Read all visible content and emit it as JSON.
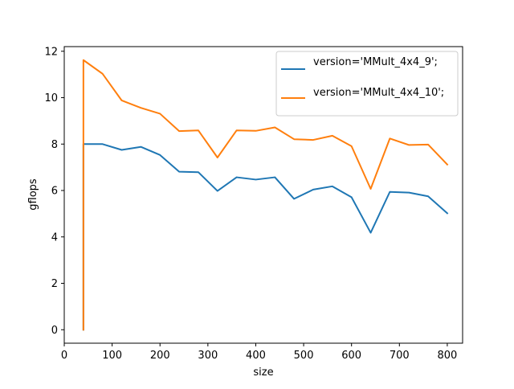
{
  "chart_data": {
    "type": "line",
    "title": "",
    "xlabel": "size",
    "ylabel": "gflops",
    "xlim": [
      0,
      832
    ],
    "ylim": [
      -0.58,
      12.2
    ],
    "xticks": [
      0,
      100,
      200,
      300,
      400,
      500,
      600,
      700,
      800
    ],
    "yticks": [
      0,
      2,
      4,
      6,
      8,
      10,
      12
    ],
    "grid": false,
    "legend_position": "top-right",
    "series": [
      {
        "name": "version='MMult_4x4_9';",
        "color": "#1f77b4",
        "x": [
          40,
          40,
          80,
          120,
          160,
          200,
          240,
          280,
          320,
          360,
          400,
          440,
          480,
          520,
          560,
          600,
          640,
          680,
          720,
          760,
          800
        ],
        "y": [
          0,
          8.0,
          8.0,
          7.75,
          7.88,
          7.53,
          6.81,
          6.79,
          5.98,
          6.57,
          6.47,
          6.57,
          5.64,
          6.04,
          6.18,
          5.71,
          4.18,
          5.94,
          5.91,
          5.75,
          5.02
        ]
      },
      {
        "name": "version='MMult_4x4_10';",
        "color": "#ff7f0e",
        "x": [
          40,
          40,
          80,
          120,
          160,
          200,
          240,
          280,
          320,
          360,
          400,
          440,
          480,
          520,
          560,
          600,
          640,
          680,
          720,
          760,
          800
        ],
        "y": [
          0,
          11.62,
          11.03,
          9.88,
          9.56,
          9.31,
          8.56,
          8.59,
          7.42,
          8.59,
          8.57,
          8.72,
          8.21,
          8.18,
          8.36,
          7.91,
          6.07,
          8.24,
          7.96,
          7.98,
          7.12
        ]
      }
    ]
  }
}
